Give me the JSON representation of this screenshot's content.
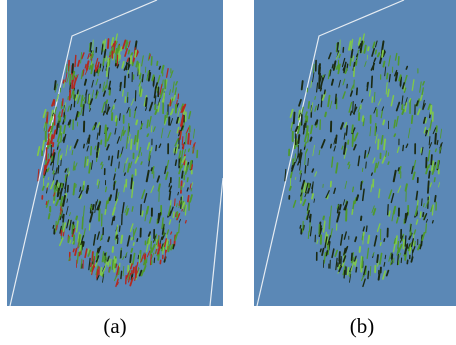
{
  "figure": {
    "panels": [
      {
        "id": "a",
        "caption": "(a)",
        "colors": {
          "background": "#5b88b6",
          "frame": "#e6ecf2",
          "dark": "#1b2a12",
          "green": "#4f9a2c",
          "bright_green": "#7fc94a",
          "red": "#b3291f"
        },
        "red_fraction": 0.35,
        "density": 1.0
      },
      {
        "id": "b",
        "caption": "(b)",
        "colors": {
          "background": "#5b88b6",
          "frame": "#e6ecf2",
          "dark": "#1b2a12",
          "green": "#4f9a2c",
          "bright_green": "#7fc94a",
          "red": "#b3291f"
        },
        "red_fraction": 0.0,
        "density": 0.65
      }
    ]
  }
}
